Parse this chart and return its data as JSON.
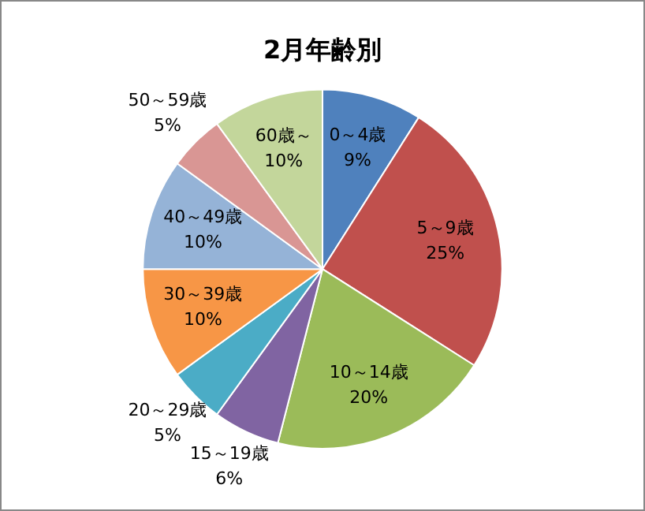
{
  "chart_data": {
    "type": "pie",
    "title": "2月年齢別",
    "categories": [
      "0～4歳",
      "5～9歳",
      "10～14歳",
      "15～19歳",
      "20～29歳",
      "30～39歳",
      "40～49歳",
      "50～59歳",
      "60歳～"
    ],
    "values": [
      9,
      25,
      20,
      6,
      5,
      10,
      10,
      5,
      10
    ],
    "colors": [
      "#4f81bd",
      "#c0504d",
      "#9bbb59",
      "#8064a2",
      "#4bacc6",
      "#f79646",
      "#95b3d7",
      "#d99694",
      "#c3d69b"
    ],
    "value_labels": [
      "9%",
      "25%",
      "20%",
      "6%",
      "5%",
      "10%",
      "10%",
      "5%",
      "10%"
    ],
    "legend": false
  }
}
